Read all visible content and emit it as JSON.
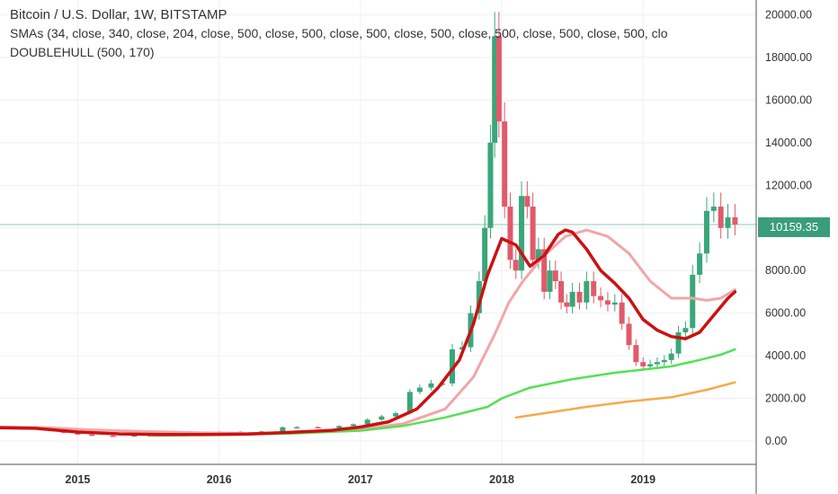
{
  "legend": {
    "title": "Bitcoin / U.S. Dollar, 1W, BITSTAMP",
    "indicator_smas": "SMAs (34, close, 340, close, 204, close, 500, close, 500, close, 500, close, 500, close, 500, close, 500, close, 500, clo",
    "indicator_hull": "DOUBLEHULL (500, 170)"
  },
  "last_price": "10159.35",
  "colors": {
    "background": "#ffffff",
    "grid": "#eef0f3",
    "up_candle": "#3aa67a",
    "down_candle": "#e05a6a",
    "hull_fast": "#cc1111",
    "hull_slow": "#f2a5a8",
    "sma_green": "#55e055",
    "sma_orange": "#f7a94a",
    "price_line": "#3a9d7a",
    "badge": "#3a9d7a"
  },
  "chart_data": {
    "type": "line",
    "title": "Bitcoin / U.S. Dollar, 1W, BITSTAMP",
    "xlabel": "",
    "ylabel": "",
    "x_tick_labels": [
      "2015",
      "2016",
      "2017",
      "2018",
      "2019"
    ],
    "y_tick_labels": [
      "0.00",
      "2000.00",
      "4000.00",
      "6000.00",
      "8000.00",
      "10000.00",
      "12000.00",
      "14000.00",
      "16000.00",
      "18000.00",
      "20000.00"
    ],
    "xlim": [
      2014.45,
      2019.8
    ],
    "ylim": [
      -1100,
      20700
    ],
    "last_price": 10159.35,
    "grid": true,
    "candles_close": {
      "x": [
        2014.5,
        2014.7,
        2014.9,
        2015.0,
        2015.1,
        2015.25,
        2015.4,
        2015.6,
        2015.75,
        2015.85,
        2016.0,
        2016.15,
        2016.3,
        2016.45,
        2016.55,
        2016.7,
        2016.85,
        2016.95,
        2017.05,
        2017.15,
        2017.25,
        2017.35,
        2017.42,
        2017.5,
        2017.58,
        2017.65,
        2017.72,
        2017.78,
        2017.84,
        2017.88,
        2017.92,
        2017.95,
        2017.98,
        2018.02,
        2018.06,
        2018.1,
        2018.14,
        2018.18,
        2018.22,
        2018.26,
        2018.3,
        2018.34,
        2018.38,
        2018.42,
        2018.46,
        2018.5,
        2018.55,
        2018.6,
        2018.65,
        2018.7,
        2018.75,
        2018.8,
        2018.85,
        2018.9,
        2018.95,
        2019.0,
        2019.05,
        2019.1,
        2019.15,
        2019.2,
        2019.25,
        2019.3,
        2019.35,
        2019.4,
        2019.45,
        2019.5,
        2019.55,
        2019.6,
        2019.65
      ],
      "y": [
        620,
        590,
        380,
        300,
        250,
        240,
        260,
        280,
        240,
        380,
        430,
        410,
        450,
        640,
        650,
        610,
        700,
        780,
        1000,
        1150,
        1300,
        2300,
        2500,
        2700,
        2700,
        4300,
        4400,
        6000,
        7500,
        10000,
        14000,
        19000,
        15000,
        11000,
        8500,
        8000,
        11500,
        11000,
        8500,
        9000,
        7000,
        8000,
        7500,
        6500,
        6300,
        7000,
        6500,
        7500,
        6800,
        6600,
        6400,
        6500,
        5500,
        4500,
        3700,
        3500,
        3600,
        3700,
        3800,
        4100,
        5100,
        5300,
        7800,
        8800,
        10800,
        11000,
        10000,
        10500,
        10159
      ]
    },
    "series": [
      {
        "name": "DOUBLEHULL fast",
        "x": [
          2014.45,
          2014.7,
          2015.0,
          2015.3,
          2015.6,
          2015.9,
          2016.2,
          2016.5,
          2016.8,
          2017.0,
          2017.2,
          2017.4,
          2017.55,
          2017.7,
          2017.8,
          2017.9,
          2018.0,
          2018.1,
          2018.2,
          2018.3,
          2018.4,
          2018.45,
          2018.5,
          2018.6,
          2018.7,
          2018.8,
          2018.9,
          2019.0,
          2019.1,
          2019.2,
          2019.3,
          2019.4,
          2019.5,
          2019.6,
          2019.65
        ],
        "y": [
          620,
          590,
          420,
          330,
          300,
          300,
          320,
          400,
          500,
          650,
          900,
          1500,
          2500,
          3800,
          5500,
          7800,
          9500,
          9200,
          8200,
          8700,
          9700,
          9900,
          9800,
          9000,
          8000,
          7400,
          6700,
          5700,
          5200,
          4900,
          4800,
          5100,
          5900,
          6700,
          7000
        ]
      },
      {
        "name": "DOUBLEHULL slow",
        "x": [
          2014.45,
          2014.8,
          2015.1,
          2015.5,
          2015.9,
          2016.2,
          2016.6,
          2017.0,
          2017.3,
          2017.6,
          2017.8,
          2017.95,
          2018.05,
          2018.15,
          2018.3,
          2018.45,
          2018.6,
          2018.75,
          2018.9,
          2019.05,
          2019.2,
          2019.35,
          2019.45,
          2019.55,
          2019.65
        ],
        "y": [
          660,
          620,
          520,
          440,
          380,
          350,
          400,
          550,
          800,
          1500,
          3000,
          5000,
          6500,
          7500,
          8700,
          9600,
          9900,
          9600,
          8800,
          7500,
          6700,
          6700,
          6600,
          6700,
          7100
        ]
      },
      {
        "name": "SMA green",
        "x": [
          2015.5,
          2016.0,
          2016.5,
          2017.0,
          2017.3,
          2017.6,
          2017.9,
          2018.0,
          2018.2,
          2018.5,
          2018.8,
          2019.0,
          2019.2,
          2019.4,
          2019.55,
          2019.65
        ],
        "y": [
          250,
          280,
          340,
          480,
          700,
          1100,
          1600,
          2000,
          2500,
          2900,
          3200,
          3350,
          3500,
          3800,
          4050,
          4300
        ]
      },
      {
        "name": "SMA orange",
        "x": [
          2018.1,
          2018.3,
          2018.6,
          2018.9,
          2019.2,
          2019.45,
          2019.65
        ],
        "y": [
          1100,
          1300,
          1600,
          1850,
          2050,
          2400,
          2750
        ]
      }
    ]
  }
}
